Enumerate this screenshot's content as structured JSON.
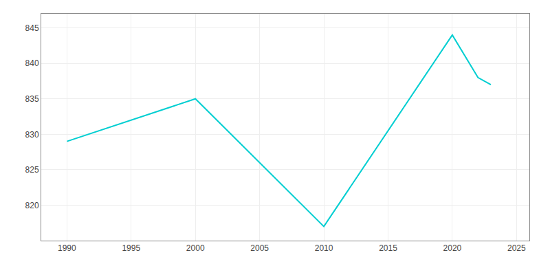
{
  "chart_data": {
    "type": "line",
    "x": [
      1990,
      2000,
      2010,
      2020,
      2022,
      2023
    ],
    "values": [
      829,
      835,
      817,
      844,
      838,
      837
    ],
    "color": "#00CED1",
    "xlim": [
      1988,
      2026
    ],
    "ylim": [
      815,
      847
    ],
    "xticks": [
      1990,
      1995,
      2000,
      2005,
      2010,
      2015,
      2020,
      2025
    ],
    "yticks": [
      820,
      825,
      830,
      835,
      840,
      845
    ],
    "grid": true
  }
}
